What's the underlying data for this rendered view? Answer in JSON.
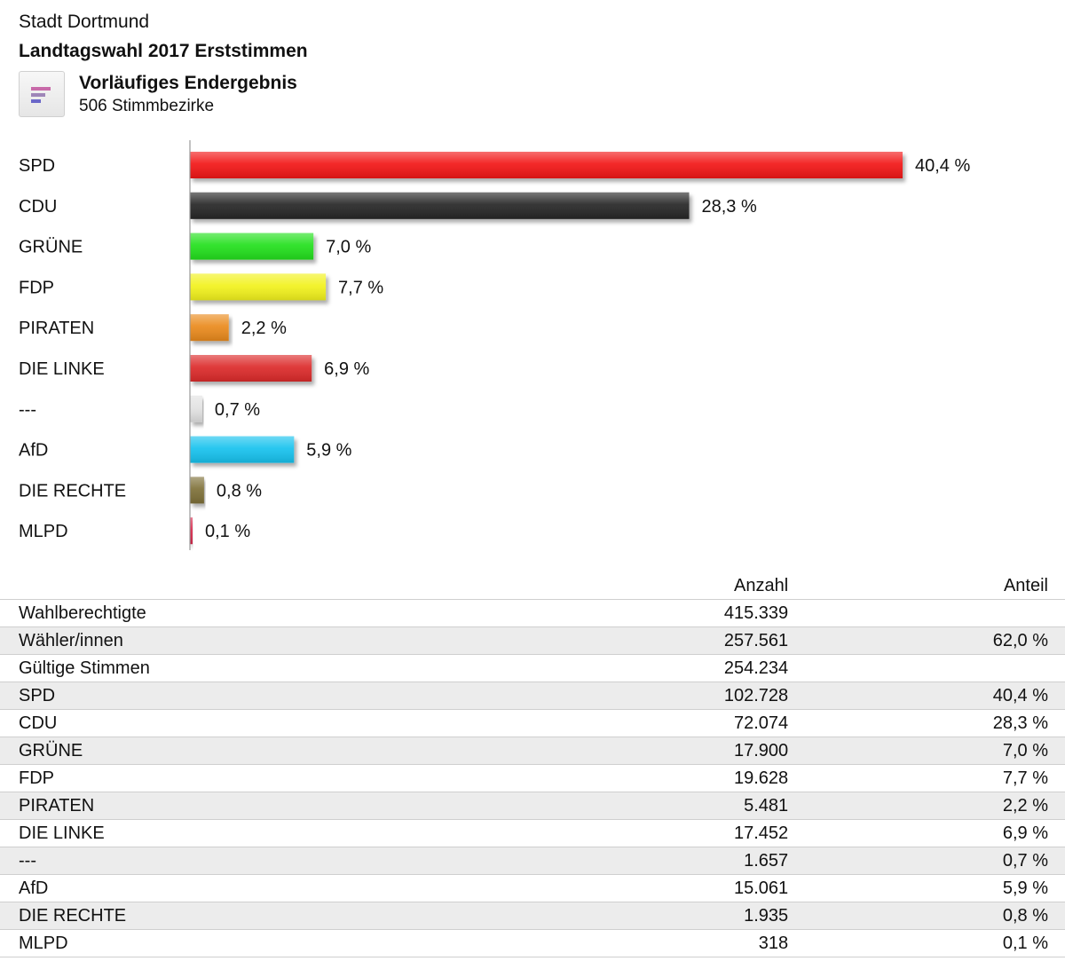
{
  "header": {
    "city": "Stadt Dortmund",
    "election": "Landtagswahl 2017 Erststimmen",
    "status_title": "Vorläufiges Endergebnis",
    "status_subtitle": "506 Stimmbezirke",
    "status_icon": "bar-chart-icon"
  },
  "chart_data": {
    "type": "bar",
    "orientation": "horizontal",
    "title": "Landtagswahl 2017 Erststimmen",
    "xlabel": "",
    "ylabel": "",
    "xlim": [
      0,
      40.4
    ],
    "grid": false,
    "categories": [
      "SPD",
      "CDU",
      "GRÜNE",
      "FDP",
      "PIRATEN",
      "DIE LINKE",
      "---",
      "AfD",
      "DIE RECHTE",
      "MLPD"
    ],
    "values": [
      40.4,
      28.3,
      7.0,
      7.7,
      2.2,
      6.9,
      0.7,
      5.9,
      0.8,
      0.1
    ],
    "value_labels": [
      "40,4 %",
      "28,3 %",
      "7,0 %",
      "7,7 %",
      "2,2 %",
      "6,9 %",
      "0,7 %",
      "5,9 %",
      "0,8 %",
      "0,1 %"
    ],
    "colors": [
      "#f21212",
      "#262626",
      "#22e01c",
      "#f2f21a",
      "#ea8a1e",
      "#dc2b2b",
      "#e2e2e2",
      "#17c2ee",
      "#7e7038",
      "#d8294e"
    ]
  },
  "table": {
    "columns": [
      "",
      "Anzahl",
      "Anteil"
    ],
    "rows": [
      {
        "label": "Wahlberechtigte",
        "count": "415.339",
        "share": ""
      },
      {
        "label": "Wähler/innen",
        "count": "257.561",
        "share": "62,0 %"
      },
      {
        "label": "Gültige Stimmen",
        "count": "254.234",
        "share": ""
      },
      {
        "label": "SPD",
        "count": "102.728",
        "share": "40,4 %"
      },
      {
        "label": "CDU",
        "count": "72.074",
        "share": "28,3 %"
      },
      {
        "label": "GRÜNE",
        "count": "17.900",
        "share": "7,0 %"
      },
      {
        "label": "FDP",
        "count": "19.628",
        "share": "7,7 %"
      },
      {
        "label": "PIRATEN",
        "count": "5.481",
        "share": "2,2 %"
      },
      {
        "label": "DIE LINKE",
        "count": "17.452",
        "share": "6,9 %"
      },
      {
        "label": "---",
        "count": "1.657",
        "share": "0,7 %"
      },
      {
        "label": "AfD",
        "count": "15.061",
        "share": "5,9 %"
      },
      {
        "label": "DIE RECHTE",
        "count": "1.935",
        "share": "0,8 %"
      },
      {
        "label": "MLPD",
        "count": "318",
        "share": "0,1 %"
      }
    ]
  }
}
